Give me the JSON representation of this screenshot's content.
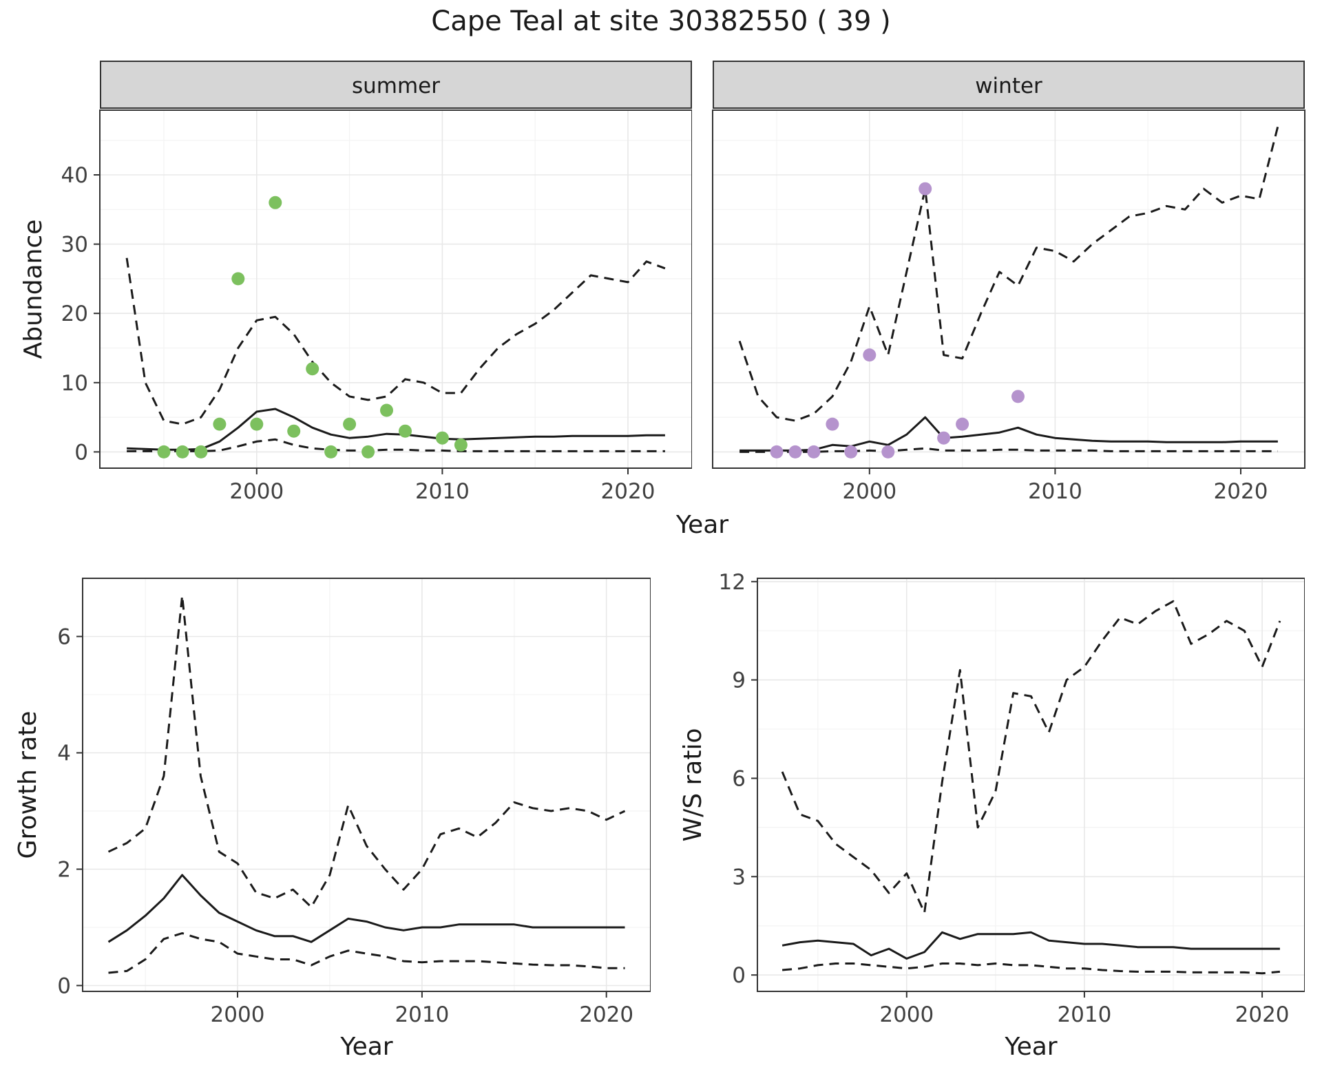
{
  "title": "Cape Teal at site 30382550 ( 39 )",
  "colors": {
    "summer_points": "#7cc05e",
    "winter_points": "#b593cd",
    "line": "#1a1a1a",
    "grid_major": "#e8e8e8",
    "grid_minor": "#f3f3f3",
    "strip_bg": "#d6d6d6",
    "panel_border": "#333333",
    "tick_label": "#404040"
  },
  "axis_labels": {
    "abundance": "Abundance",
    "year": "Year",
    "growth_rate": "Growth rate",
    "ws_ratio": "W/S ratio"
  },
  "facets": {
    "summer": "summer",
    "winter": "winter"
  },
  "chart_data": [
    {
      "id": "abundance-summer",
      "type": "line",
      "facet": "summer",
      "xlabel": "Year",
      "ylabel": "Abundance",
      "xlim": [
        1991.55,
        2023.45
      ],
      "ylim": [
        -2.35,
        49.35
      ],
      "xticks": [
        2000,
        2010,
        2020
      ],
      "yticks": [
        0,
        10,
        20,
        30,
        40
      ],
      "xticks_minor": [
        1995,
        2005,
        2015
      ],
      "yticks_minor": [
        5,
        15,
        25,
        35,
        45
      ],
      "show_y_tick_labels": true,
      "show_y_axis": true,
      "points": {
        "name": "observed summer counts",
        "color_key": "summer_points",
        "x": [
          1995,
          1996,
          1997,
          1998,
          1999,
          2000,
          2001,
          2002,
          2003,
          2004,
          2005,
          2006,
          2007,
          2008,
          2010,
          2011
        ],
        "y": [
          0,
          0,
          0,
          4,
          25,
          4,
          36,
          3,
          12,
          0,
          4,
          0,
          6,
          3,
          2,
          1
        ]
      },
      "series": [
        {
          "name": "fitted median",
          "dash": false,
          "x_start": 1993,
          "x_step": 1,
          "y": [
            0.5,
            0.4,
            0.3,
            0.3,
            0.4,
            1.5,
            3.5,
            5.8,
            6.2,
            5.0,
            3.5,
            2.5,
            2.0,
            2.2,
            2.6,
            2.5,
            2.2,
            1.9,
            1.8,
            1.9,
            2.0,
            2.1,
            2.2,
            2.2,
            2.3,
            2.3,
            2.3,
            2.3,
            2.4,
            2.4
          ]
        },
        {
          "name": "upper credible interval",
          "dash": true,
          "x_start": 1993,
          "x_step": 1,
          "y": [
            28,
            10,
            4.5,
            4,
            5,
            9,
            15,
            19,
            19.5,
            17,
            13,
            10,
            8,
            7.5,
            8,
            10.5,
            10,
            8.5,
            8.5,
            12,
            15,
            17,
            18.5,
            20.5,
            23,
            25.5,
            25,
            24.5,
            27.5,
            26.5
          ]
        },
        {
          "name": "lower credible interval",
          "dash": true,
          "x_start": 1993,
          "x_step": 1,
          "y": [
            0.1,
            0.1,
            0.1,
            0.1,
            0.1,
            0.2,
            0.8,
            1.5,
            1.8,
            1.0,
            0.5,
            0.3,
            0.2,
            0.2,
            0.3,
            0.3,
            0.2,
            0.2,
            0.1,
            0.1,
            0.1,
            0.1,
            0.1,
            0.1,
            0.1,
            0.1,
            0.1,
            0.1,
            0.1,
            0.1
          ]
        }
      ]
    },
    {
      "id": "abundance-winter",
      "type": "line",
      "facet": "winter",
      "xlabel": "Year",
      "ylabel": "Abundance",
      "xlim": [
        1991.55,
        2023.45
      ],
      "ylim": [
        -2.35,
        49.35
      ],
      "xticks": [
        2000,
        2010,
        2020
      ],
      "yticks": [
        0,
        10,
        20,
        30,
        40
      ],
      "xticks_minor": [
        1995,
        2005,
        2015
      ],
      "yticks_minor": [
        5,
        15,
        25,
        35,
        45
      ],
      "show_y_tick_labels": false,
      "show_y_axis": false,
      "points": {
        "name": "observed winter counts",
        "color_key": "winter_points",
        "x": [
          1995,
          1996,
          1997,
          1998,
          1999,
          2000,
          2001,
          2003,
          2004,
          2005,
          2008
        ],
        "y": [
          0,
          0,
          0,
          4,
          0,
          14,
          0,
          38,
          2,
          4,
          8
        ]
      },
      "series": [
        {
          "name": "fitted median",
          "dash": false,
          "x_start": 1993,
          "x_step": 1,
          "y": [
            0.2,
            0.2,
            0.2,
            0.2,
            0.3,
            1.0,
            0.8,
            1.5,
            1.0,
            2.5,
            5.0,
            2.0,
            2.2,
            2.5,
            2.8,
            3.5,
            2.5,
            2.0,
            1.8,
            1.6,
            1.5,
            1.5,
            1.5,
            1.4,
            1.4,
            1.4,
            1.4,
            1.5,
            1.5,
            1.5
          ]
        },
        {
          "name": "upper credible interval",
          "dash": true,
          "x_start": 1993,
          "x_step": 1,
          "y": [
            16,
            8,
            5,
            4.5,
            5.5,
            8,
            13,
            21,
            14,
            26,
            38,
            14,
            13.5,
            20,
            26,
            24,
            29.5,
            29,
            27.5,
            30,
            32,
            34,
            34.5,
            35.5,
            35,
            38,
            36,
            37,
            36.5,
            47
          ]
        },
        {
          "name": "lower credible interval",
          "dash": true,
          "x_start": 1993,
          "x_step": 1,
          "y": [
            0,
            0,
            0,
            0,
            0,
            0.1,
            0.1,
            0.2,
            0.1,
            0.3,
            0.5,
            0.2,
            0.2,
            0.2,
            0.3,
            0.3,
            0.2,
            0.2,
            0.2,
            0.2,
            0.1,
            0.1,
            0.1,
            0.1,
            0.1,
            0.1,
            0.1,
            0.1,
            0.1,
            0.1
          ]
        }
      ]
    },
    {
      "id": "growth-rate",
      "type": "line",
      "facet": null,
      "xlabel": "Year",
      "ylabel": "Growth rate",
      "xlim": [
        1991.6,
        2022.4
      ],
      "ylim": [
        -0.1,
        7.0
      ],
      "xticks": [
        2000,
        2010,
        2020
      ],
      "yticks": [
        0,
        2,
        4,
        6
      ],
      "xticks_minor": [
        1995,
        2005,
        2015
      ],
      "yticks_minor": [
        1,
        3,
        5
      ],
      "show_y_tick_labels": true,
      "show_y_axis": true,
      "series": [
        {
          "name": "median growth rate",
          "dash": false,
          "x_start": 1993,
          "x_step": 1,
          "y": [
            0.75,
            0.95,
            1.2,
            1.5,
            1.9,
            1.55,
            1.25,
            1.1,
            0.95,
            0.85,
            0.85,
            0.75,
            0.95,
            1.15,
            1.1,
            1.0,
            0.95,
            1.0,
            1.0,
            1.05,
            1.05,
            1.05,
            1.05,
            1.0,
            1.0,
            1.0,
            1.0,
            1.0,
            1.0
          ]
        },
        {
          "name": "upper credible interval",
          "dash": true,
          "x_start": 1993,
          "x_step": 1,
          "y": [
            2.3,
            2.45,
            2.7,
            3.6,
            6.7,
            3.6,
            2.3,
            2.1,
            1.6,
            1.5,
            1.65,
            1.35,
            1.9,
            3.1,
            2.4,
            2.0,
            1.65,
            2.0,
            2.6,
            2.7,
            2.55,
            2.8,
            3.15,
            3.05,
            3.0,
            3.05,
            3.0,
            2.85,
            3.0
          ]
        },
        {
          "name": "lower credible interval",
          "dash": true,
          "x_start": 1993,
          "x_step": 1,
          "y": [
            0.22,
            0.25,
            0.45,
            0.8,
            0.9,
            0.8,
            0.75,
            0.55,
            0.5,
            0.45,
            0.45,
            0.35,
            0.5,
            0.6,
            0.55,
            0.5,
            0.42,
            0.4,
            0.42,
            0.42,
            0.42,
            0.4,
            0.38,
            0.36,
            0.35,
            0.35,
            0.33,
            0.3,
            0.3
          ]
        }
      ]
    },
    {
      "id": "ws-ratio",
      "type": "line",
      "facet": null,
      "xlabel": "Year",
      "ylabel": "W/S ratio",
      "xlim": [
        1991.6,
        2022.4
      ],
      "ylim": [
        -0.5,
        12.1
      ],
      "xticks": [
        2000,
        2010,
        2020
      ],
      "yticks": [
        0,
        3,
        6,
        9,
        12
      ],
      "xticks_minor": [
        1995,
        2005,
        2015
      ],
      "yticks_minor": [
        1.5,
        4.5,
        7.5,
        10.5
      ],
      "show_y_tick_labels": true,
      "show_y_axis": true,
      "series": [
        {
          "name": "median winter/summer ratio",
          "dash": false,
          "x_start": 1993,
          "x_step": 1,
          "y": [
            0.9,
            1.0,
            1.05,
            1.0,
            0.95,
            0.6,
            0.8,
            0.5,
            0.7,
            1.3,
            1.1,
            1.25,
            1.25,
            1.25,
            1.3,
            1.05,
            1.0,
            0.95,
            0.95,
            0.9,
            0.85,
            0.85,
            0.85,
            0.8,
            0.8,
            0.8,
            0.8,
            0.8,
            0.8
          ]
        },
        {
          "name": "upper credible interval",
          "dash": true,
          "x_start": 1993,
          "x_step": 1,
          "y": [
            6.2,
            4.9,
            4.7,
            4.0,
            3.6,
            3.2,
            2.5,
            3.1,
            1.9,
            5.9,
            9.3,
            4.5,
            5.6,
            8.6,
            8.5,
            7.4,
            9.0,
            9.4,
            10.2,
            10.9,
            10.7,
            11.1,
            11.4,
            10.1,
            10.4,
            10.8,
            10.5,
            9.4,
            10.8
          ]
        },
        {
          "name": "lower credible interval",
          "dash": true,
          "x_start": 1993,
          "x_step": 1,
          "y": [
            0.15,
            0.2,
            0.3,
            0.35,
            0.35,
            0.3,
            0.25,
            0.2,
            0.25,
            0.35,
            0.35,
            0.3,
            0.35,
            0.3,
            0.3,
            0.25,
            0.2,
            0.2,
            0.15,
            0.12,
            0.1,
            0.1,
            0.1,
            0.08,
            0.08,
            0.08,
            0.08,
            0.05,
            0.1
          ]
        }
      ]
    }
  ]
}
